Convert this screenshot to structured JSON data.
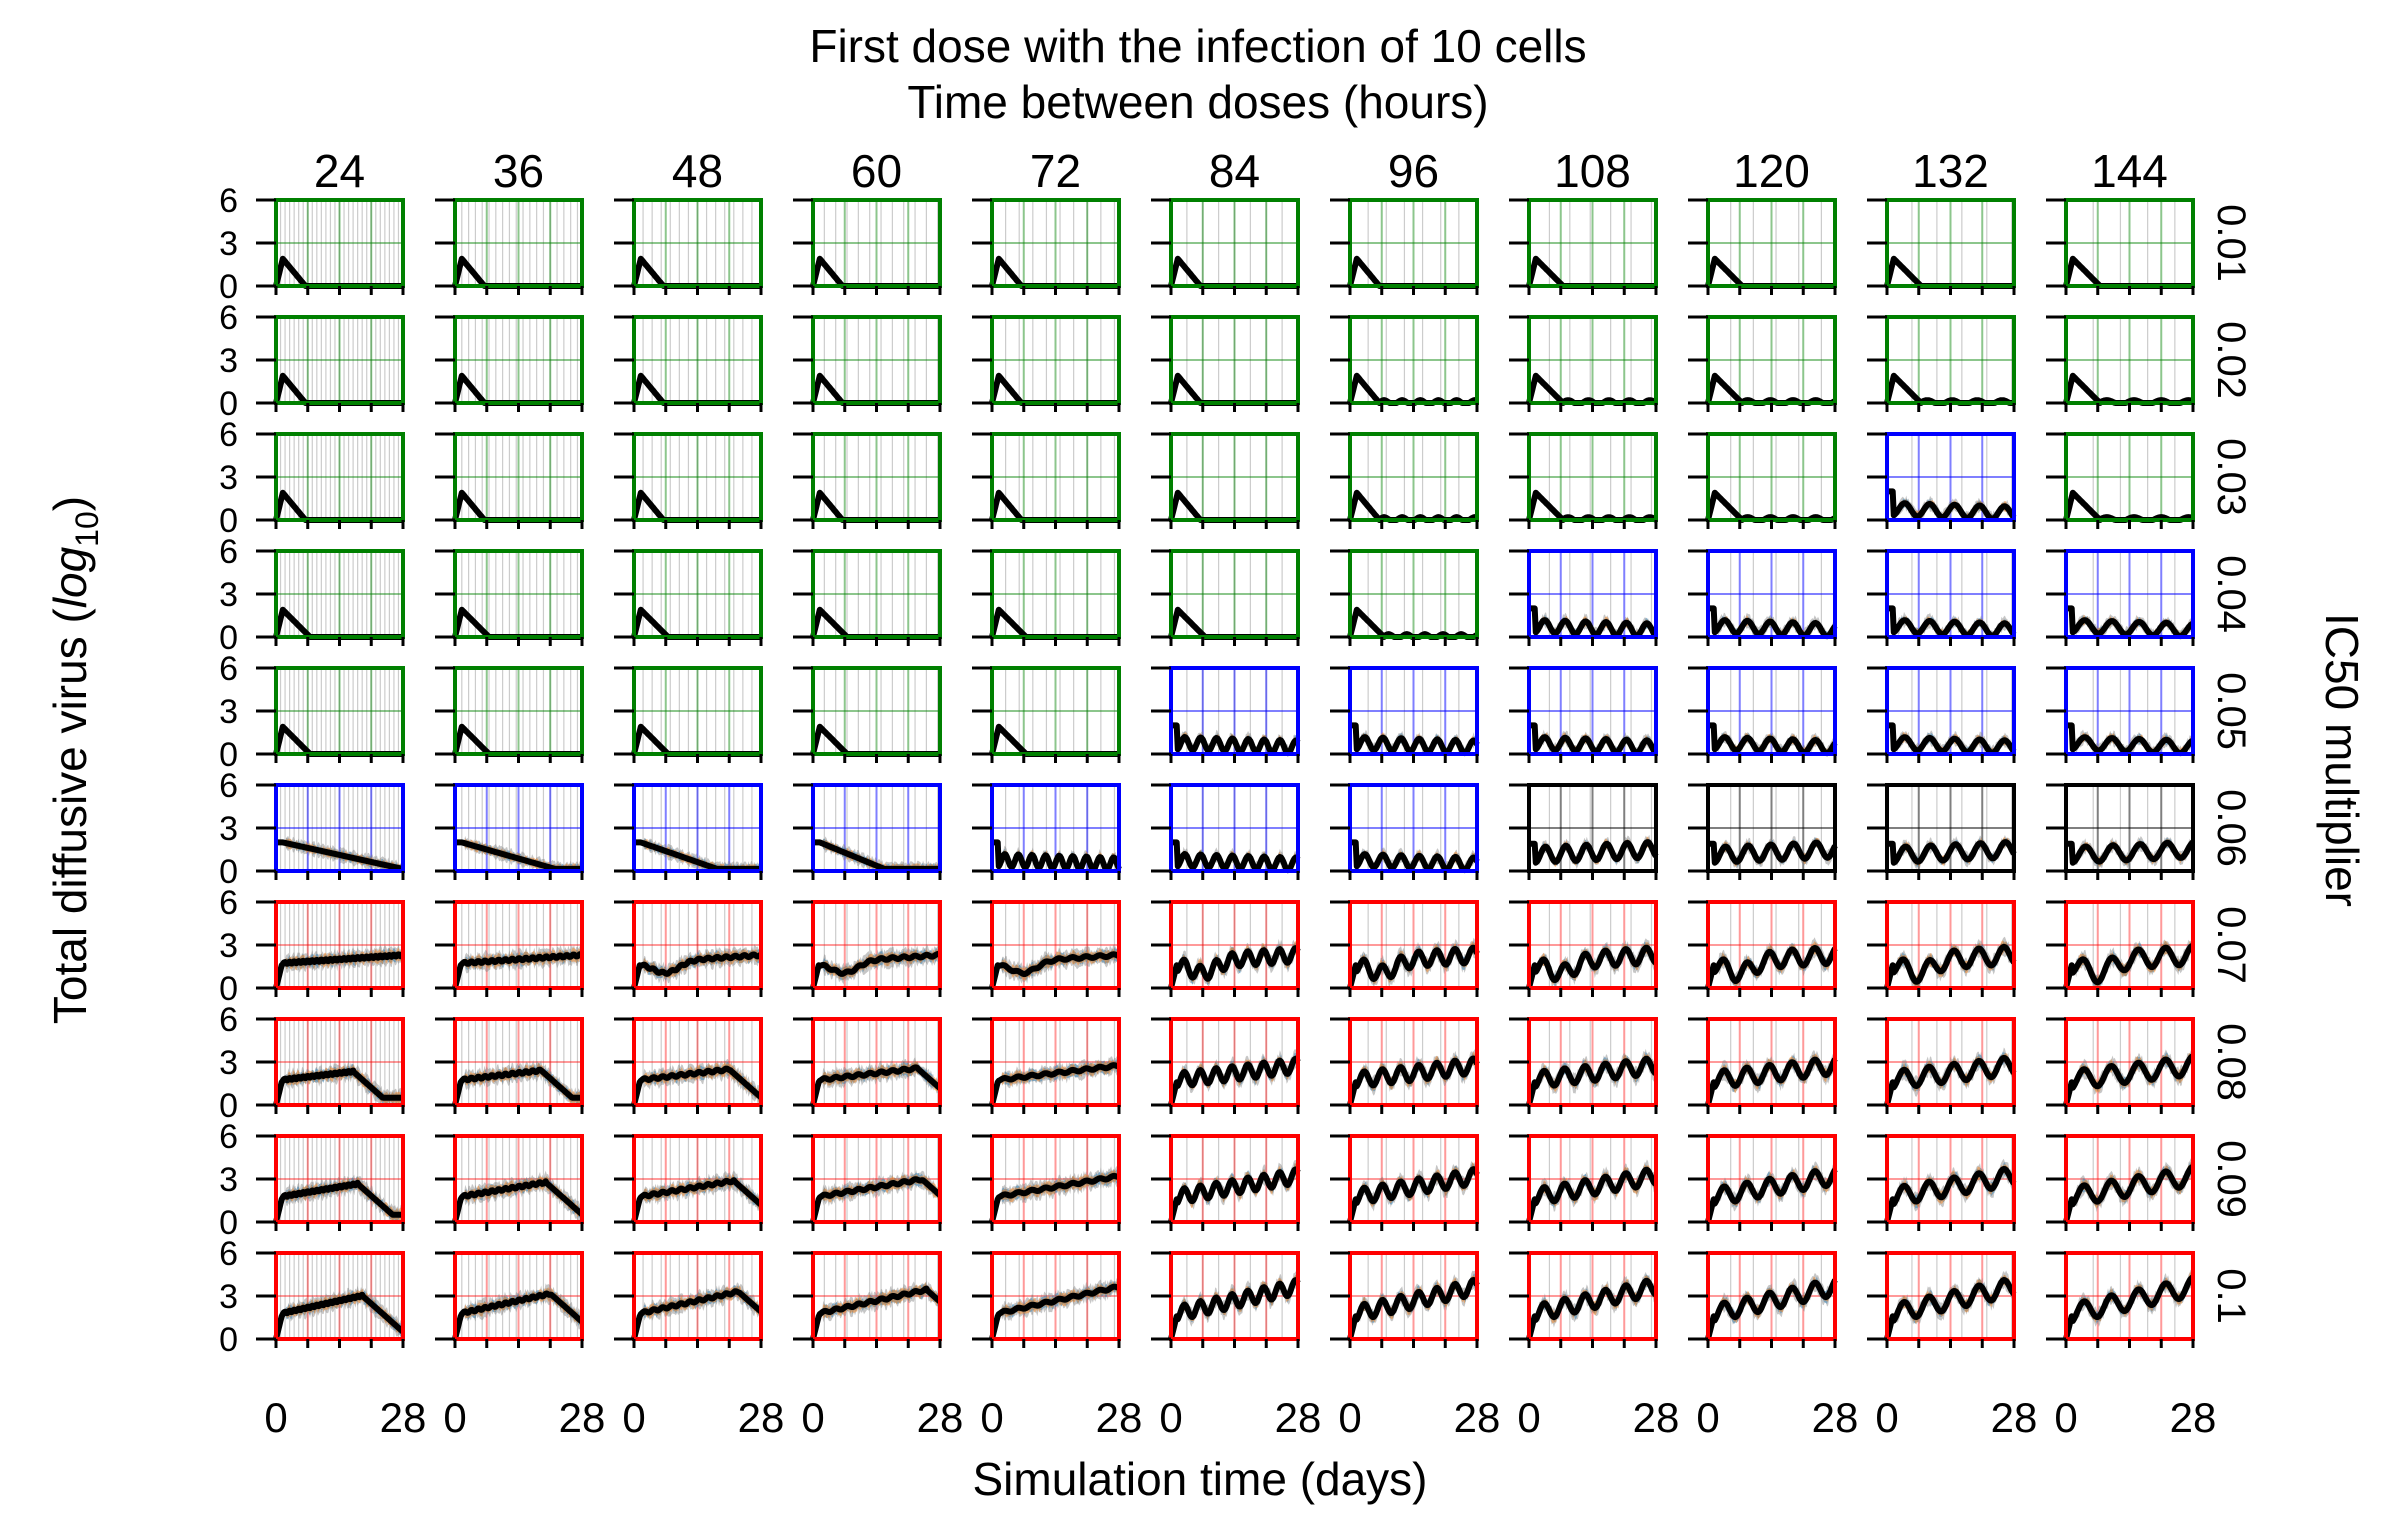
{
  "chart_data": {
    "type": "line",
    "title": "First dose with the infection of 10 cells",
    "subtitle": "Time between doses (hours)",
    "xlabel": "Simulation time (days)",
    "ylabel": "Total diffusive virus (log10)",
    "ylabel_prefix": "Total diffusive virus (",
    "ylabel_log": "log",
    "ylabel_base": "10",
    "ylabel_suffix": ")",
    "right_label": "IC50 multiplier",
    "xlim": [
      0,
      28
    ],
    "ylim": [
      0,
      6
    ],
    "x_tick_labels": [
      "0",
      "28"
    ],
    "y_tick_labels": [
      "0",
      "3",
      "6"
    ],
    "columns": [
      "24",
      "36",
      "48",
      "60",
      "72",
      "84",
      "96",
      "108",
      "120",
      "132",
      "144"
    ],
    "dose_hours": [
      24,
      36,
      48,
      60,
      72,
      84,
      96,
      108,
      120,
      132,
      144
    ],
    "rows": [
      "0.01",
      "0.02",
      "0.03",
      "0.04",
      "0.05",
      "0.06",
      "0.07",
      "0.08",
      "0.09",
      "0.1"
    ],
    "status_colors": {
      "cleared": "#008000",
      "controlled": "#0000ff",
      "persistent": "#000000",
      "failed": "#ff0000"
    },
    "series_colors": {
      "mean": "#000000",
      "band_a": "#1f77b4",
      "band_b": "#ff7f0e",
      "band_c": "#808080"
    },
    "panel_status": [
      [
        "cleared",
        "cleared",
        "cleared",
        "cleared",
        "cleared",
        "cleared",
        "cleared",
        "cleared",
        "cleared",
        "cleared",
        "cleared"
      ],
      [
        "cleared",
        "cleared",
        "cleared",
        "cleared",
        "cleared",
        "cleared",
        "cleared",
        "cleared",
        "cleared",
        "cleared",
        "cleared"
      ],
      [
        "cleared",
        "cleared",
        "cleared",
        "cleared",
        "cleared",
        "cleared",
        "cleared",
        "cleared",
        "cleared",
        "controlled",
        "cleared"
      ],
      [
        "cleared",
        "cleared",
        "cleared",
        "cleared",
        "cleared",
        "cleared",
        "cleared",
        "controlled",
        "controlled",
        "controlled",
        "controlled"
      ],
      [
        "cleared",
        "cleared",
        "cleared",
        "cleared",
        "cleared",
        "controlled",
        "controlled",
        "controlled",
        "controlled",
        "controlled",
        "controlled"
      ],
      [
        "controlled",
        "controlled",
        "controlled",
        "controlled",
        "controlled",
        "controlled",
        "controlled",
        "persistent",
        "persistent",
        "persistent",
        "persistent"
      ],
      [
        "failed",
        "failed",
        "failed",
        "failed",
        "failed",
        "failed",
        "failed",
        "failed",
        "failed",
        "failed",
        "failed"
      ],
      [
        "failed",
        "failed",
        "failed",
        "failed",
        "failed",
        "failed",
        "failed",
        "failed",
        "failed",
        "failed",
        "failed"
      ],
      [
        "failed",
        "failed",
        "failed",
        "failed",
        "failed",
        "failed",
        "failed",
        "failed",
        "failed",
        "failed",
        "failed"
      ],
      [
        "failed",
        "failed",
        "failed",
        "failed",
        "failed",
        "failed",
        "failed",
        "failed",
        "failed",
        "failed",
        "failed"
      ]
    ],
    "peak_day": 1.5,
    "peak_value": 1.9,
    "clearance_day": 6.5
  }
}
